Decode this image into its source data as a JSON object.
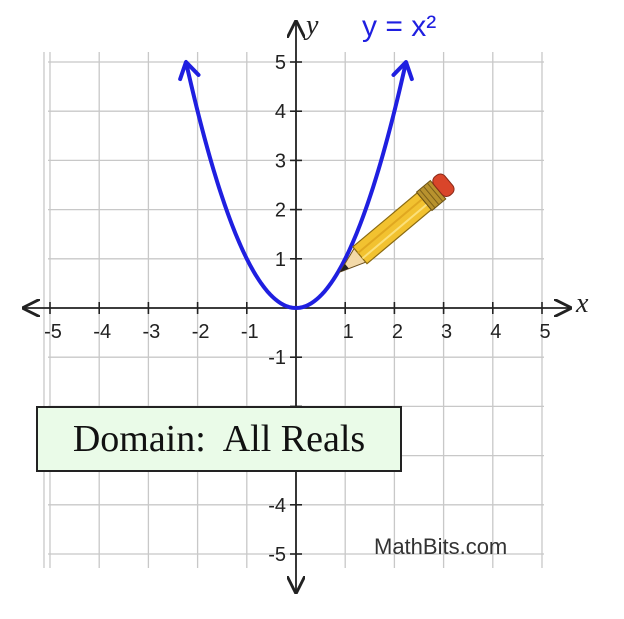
{
  "chart_data": {
    "type": "line",
    "xlabel": "x",
    "ylabel": "y",
    "xlim": [
      -5,
      5
    ],
    "ylim": [
      -5,
      5
    ],
    "x_ticks": [
      "-5",
      "-4",
      "-3",
      "-2",
      "-1",
      "1",
      "2",
      "3",
      "4",
      "5"
    ],
    "y_ticks_positive": [
      "1",
      "2",
      "3",
      "4",
      "5"
    ],
    "y_ticks_negative": [
      "-1",
      "-4",
      "-5"
    ],
    "grid": true,
    "series": [
      {
        "name": "y = x²",
        "color": "#1f1fe0",
        "x": [
          -2.236,
          -2,
          -1.5,
          -1,
          -0.5,
          0,
          0.5,
          1,
          1.5,
          2,
          2.236
        ],
        "y": [
          5,
          4,
          2.25,
          1,
          0.25,
          0,
          0.25,
          1,
          2.25,
          4,
          5
        ],
        "arrows_at_ends": true
      }
    ]
  },
  "equation_label": "y = x²",
  "domain_box": {
    "text": "Domain:  All Reals",
    "bg_color": "#eafbe8"
  },
  "watermark": "MathBits.com",
  "pencil": {
    "icon": "pencil-icon",
    "colors": {
      "body": "#f2c230",
      "eraser": "#d9452a",
      "ferrule": "#b8922e"
    }
  }
}
